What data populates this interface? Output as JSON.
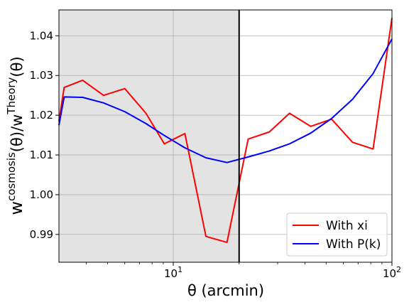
{
  "chart_data": {
    "type": "line",
    "xscale": "log",
    "xlabel": "θ (arcmin)",
    "ylabel_parts": {
      "w1": "w",
      "sup1": "cosmosis",
      "mid": "(θ)/w",
      "sup2": "Theory",
      "end": "(θ)"
    },
    "xlim": [
      3,
      100
    ],
    "ylim": [
      0.983,
      1.0465
    ],
    "x_ticks": [
      {
        "value": 10,
        "base": "10",
        "exp": "1"
      },
      {
        "value": 100,
        "base": "10",
        "exp": "2"
      }
    ],
    "y_ticks": [
      {
        "value": 0.99,
        "label": "0.99"
      },
      {
        "value": 1.0,
        "label": "1.00"
      },
      {
        "value": 1.01,
        "label": "1.01"
      },
      {
        "value": 1.02,
        "label": "1.02"
      },
      {
        "value": 1.03,
        "label": "1.03"
      },
      {
        "value": 1.04,
        "label": "1.04"
      }
    ],
    "shaded_region": {
      "x_from": 3,
      "x_to": 20,
      "color": "#e3e3e3"
    },
    "vertical_line": {
      "x": 20,
      "color": "#000000"
    },
    "grid": true,
    "legend_position": "lower-right",
    "series": [
      {
        "name": "With xi",
        "color": "#ff0000",
        "x": [
          3.0,
          3.17,
          3.85,
          4.8,
          6.0,
          7.5,
          9.1,
          11.3,
          14.1,
          17.6,
          22.0,
          27.5,
          34.0,
          42.5,
          53.0,
          66.0,
          82.0,
          100.0
        ],
        "y": [
          1.0185,
          1.027,
          1.0288,
          1.025,
          1.0267,
          1.0205,
          1.0128,
          1.0154,
          0.9895,
          0.988,
          1.014,
          1.0158,
          1.0205,
          1.0172,
          1.019,
          1.0132,
          1.0115,
          1.0445
        ]
      },
      {
        "name": "With P(k)",
        "color": "#0000ff",
        "x": [
          3.0,
          3.17,
          3.85,
          4.8,
          6.0,
          7.5,
          9.1,
          11.3,
          14.1,
          17.6,
          22.0,
          27.5,
          34.0,
          42.5,
          53.0,
          66.0,
          82.0,
          100.0
        ],
        "y": [
          1.0175,
          1.0246,
          1.0245,
          1.0231,
          1.0209,
          1.0179,
          1.0149,
          1.0118,
          1.0093,
          1.0081,
          1.0095,
          1.011,
          1.0128,
          1.0155,
          1.0192,
          1.024,
          1.0305,
          1.0392
        ]
      }
    ]
  }
}
